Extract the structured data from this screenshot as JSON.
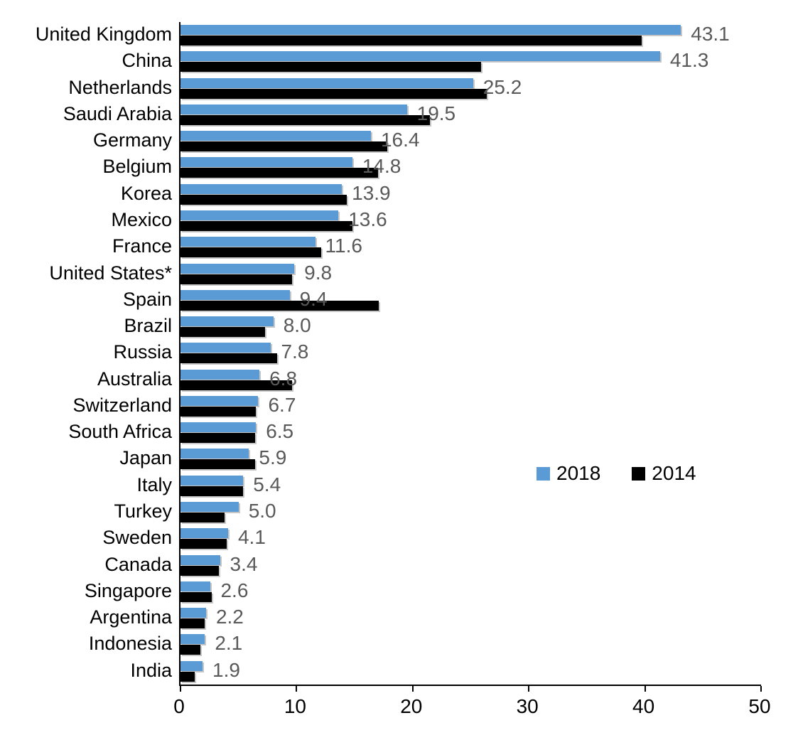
{
  "chart_data": {
    "type": "bar",
    "orientation": "horizontal",
    "title": "",
    "xlabel": "",
    "ylabel": "",
    "xlim": [
      0,
      50
    ],
    "x_ticks": [
      "0",
      "10",
      "20",
      "30",
      "40",
      "50"
    ],
    "x_tick_values": [
      0,
      10,
      20,
      30,
      40,
      50
    ],
    "grid": false,
    "legend_position": "middle-right",
    "value_label_color": "#595959",
    "categories": [
      "United Kingdom",
      "China",
      "Netherlands",
      "Saudi Arabia",
      "Germany",
      "Belgium",
      "Korea",
      "Mexico",
      "France",
      "United States*",
      "Spain",
      "Brazil",
      "Russia",
      "Australia",
      "Switzerland",
      "South Africa",
      "Japan",
      "Italy",
      "Turkey",
      "Sweden",
      "Canada",
      "Singapore",
      "Argentina",
      "Indonesia",
      "India"
    ],
    "series": [
      {
        "name": "2018",
        "color": "#5B9BD5",
        "values": [
          43.1,
          41.3,
          25.2,
          19.5,
          16.4,
          14.8,
          13.9,
          13.6,
          11.6,
          9.8,
          9.4,
          8.0,
          7.8,
          6.8,
          6.7,
          6.5,
          5.9,
          5.4,
          5.0,
          4.1,
          3.4,
          2.6,
          2.2,
          2.1,
          1.9
        ],
        "data_labels": [
          "43.1",
          "41.3",
          "25.2",
          "19.5",
          "16.4",
          "14.8",
          "13.9",
          "13.6",
          "11.6",
          "9.8",
          "9.4",
          "8.0",
          "7.8",
          "6.8",
          "6.7",
          "6.5",
          "5.9",
          "5.4",
          "5.0",
          "4.1",
          "3.4",
          "2.6",
          "2.2",
          "2.1",
          "1.9"
        ]
      },
      {
        "name": "2014",
        "color": "#000000",
        "values": [
          39.7,
          25.9,
          26.4,
          21.5,
          17.8,
          17.0,
          14.3,
          14.8,
          12.1,
          9.6,
          17.1,
          7.3,
          8.3,
          9.6,
          6.5,
          6.4,
          6.4,
          5.4,
          3.8,
          4.0,
          3.3,
          2.7,
          2.1,
          1.7,
          1.2
        ]
      }
    ]
  }
}
